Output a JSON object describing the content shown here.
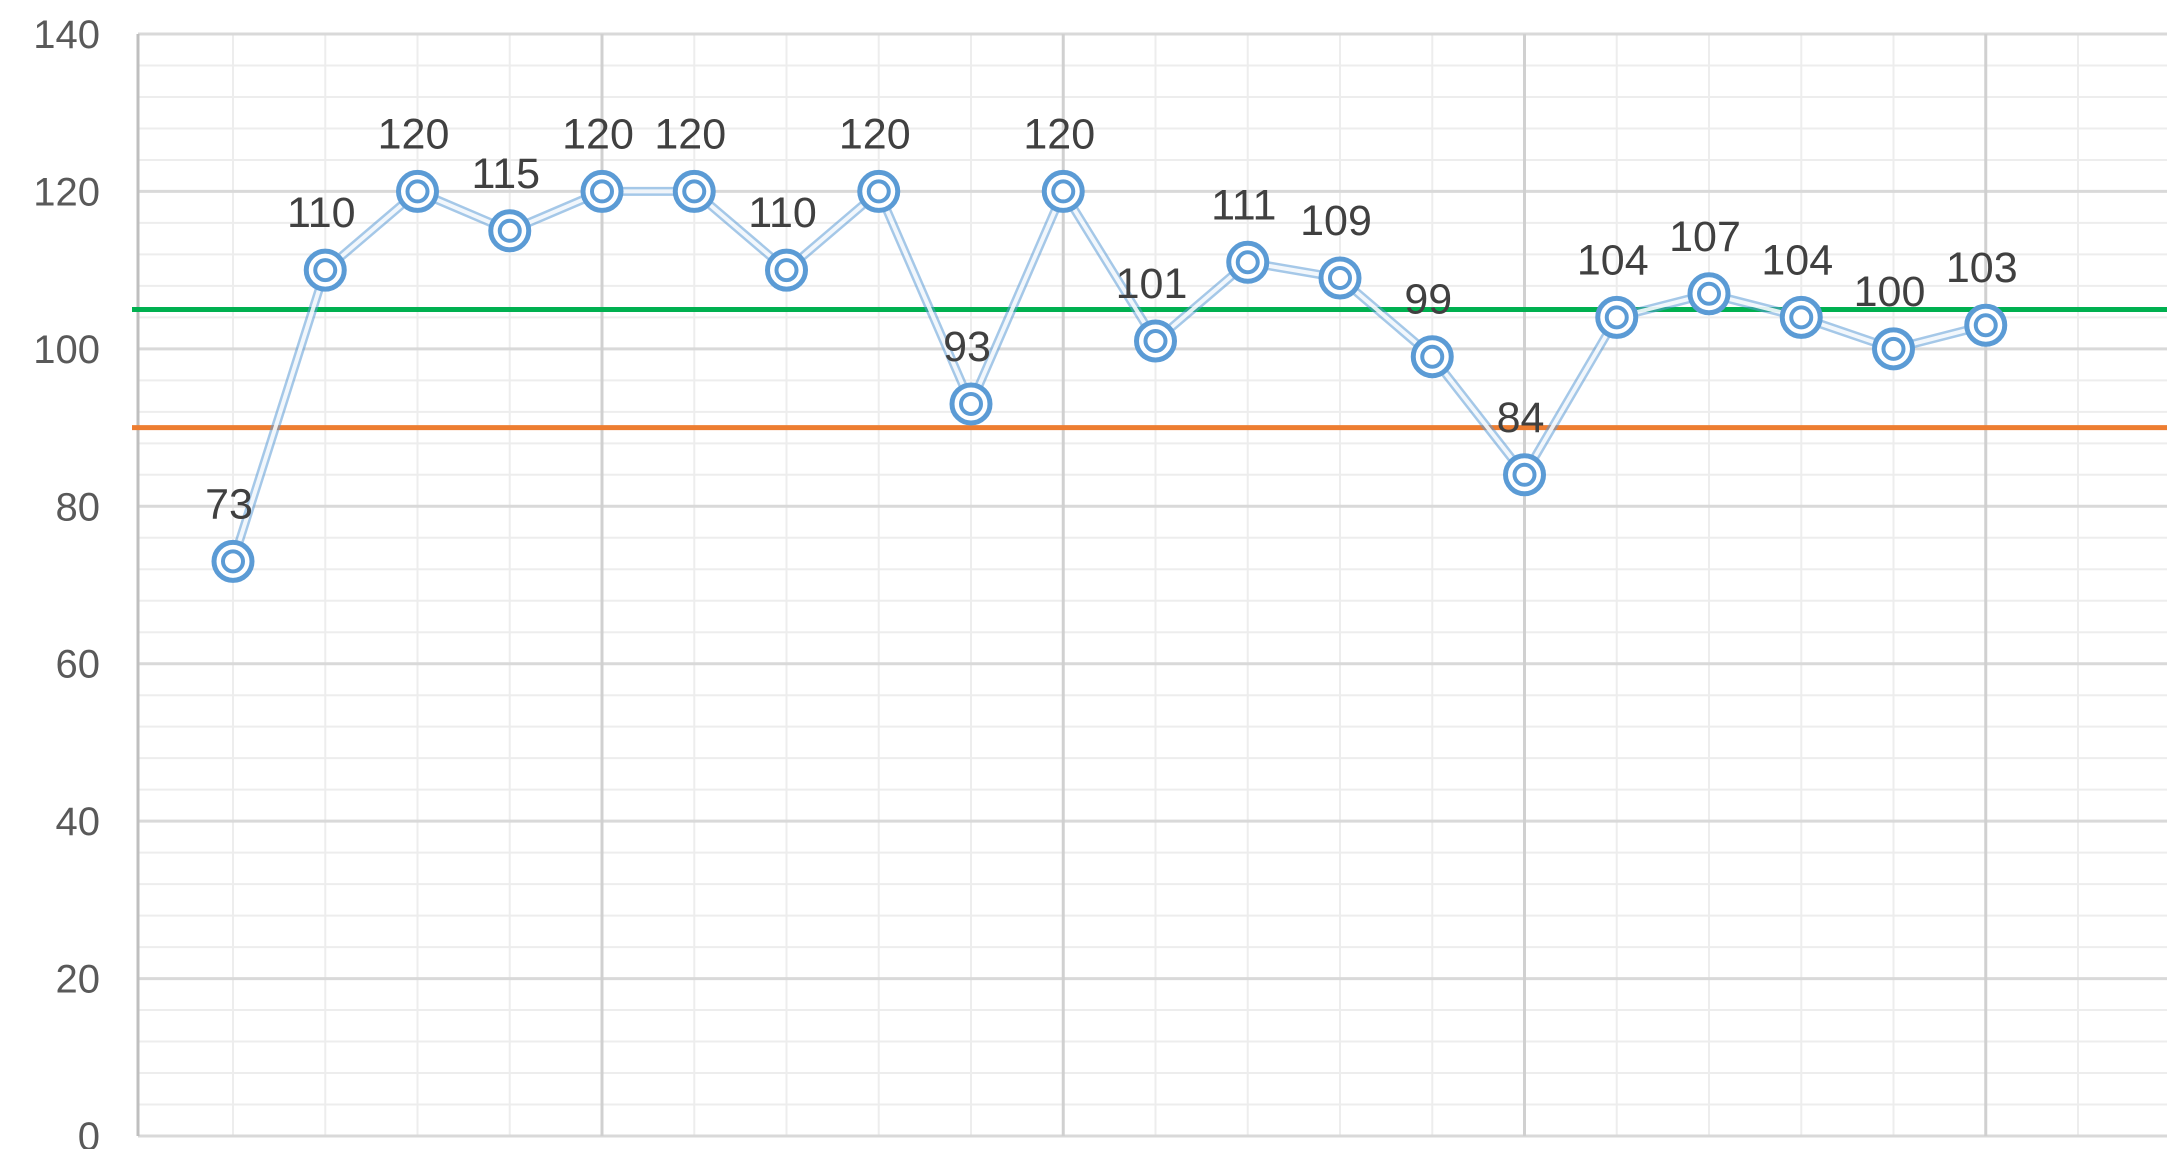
{
  "chart_data": {
    "type": "line",
    "title": "",
    "xlabel": "",
    "ylabel": "",
    "ylim": [
      0,
      140
    ],
    "yticks": [
      0,
      20,
      40,
      60,
      80,
      100,
      120,
      140
    ],
    "grid": true,
    "legend": "none",
    "series": [
      {
        "values": [
          73,
          110,
          120,
          115,
          120,
          120,
          110,
          120,
          93,
          120,
          101,
          111,
          109,
          99,
          84,
          104,
          107,
          104,
          100,
          103
        ],
        "color": "#5b9bd5",
        "marker": "double-circle",
        "data_labels": true
      }
    ],
    "reference_lines": [
      {
        "value": 105,
        "color": "#00b050"
      },
      {
        "value": 90,
        "color": "#ed7d31"
      }
    ]
  }
}
